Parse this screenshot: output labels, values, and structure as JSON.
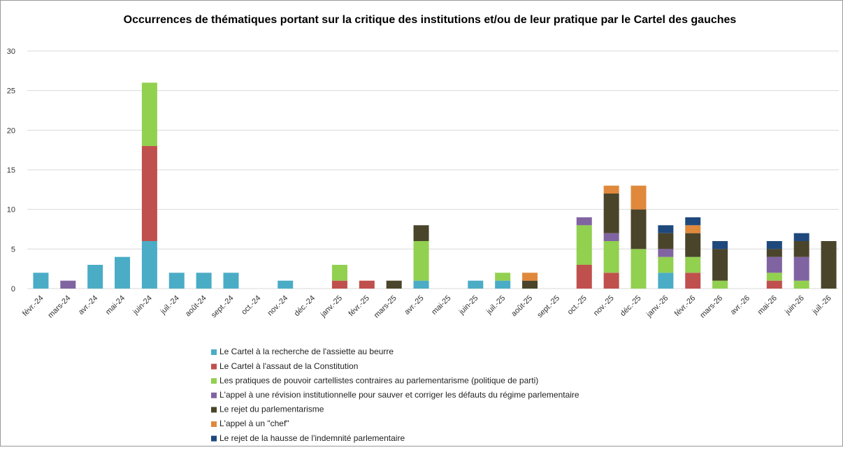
{
  "chart_data": {
    "type": "stacked_bar",
    "title": "Occurrences de thématiques portant sur la critique des institutions et/ou de leur pratique par le Cartel des gauches",
    "categories": [
      "févr.-24",
      "mars-24",
      "avr.-24",
      "mai-24",
      "juin-24",
      "juil.-24",
      "août-24",
      "sept.-24",
      "oct.-24",
      "nov.-24",
      "déc.-24",
      "janv.-25",
      "févr.-25",
      "mars-25",
      "avr.-25",
      "mai-25",
      "juin-25",
      "juil.-25",
      "août-25",
      "sept.-25",
      "oct.-25",
      "nov.-25",
      "déc.-25",
      "janv.-26",
      "févr.-26",
      "mars-26",
      "avr.-26",
      "mai-26",
      "juin-26",
      "juil.-26"
    ],
    "series": [
      {
        "name": "Le Cartel à la recherche de l'assiette au beurre",
        "color": "#4bacc6",
        "values": [
          2,
          0,
          3,
          4,
          6,
          2,
          2,
          2,
          0,
          1,
          0,
          0,
          0,
          0,
          1,
          0,
          1,
          1,
          0,
          0,
          0,
          0,
          0,
          2,
          0,
          0,
          0,
          0,
          0,
          0
        ]
      },
      {
        "name": "Le Cartel à l'assaut de la Constitution",
        "color": "#c0504d",
        "values": [
          0,
          0,
          0,
          0,
          12,
          0,
          0,
          0,
          0,
          0,
          0,
          1,
          1,
          0,
          0,
          0,
          0,
          0,
          0,
          0,
          3,
          2,
          0,
          0,
          2,
          0,
          0,
          1,
          0,
          0
        ]
      },
      {
        "name": "Les pratiques de pouvoir cartellistes contraires au parlementarisme (politique de parti)",
        "color": "#92d050",
        "values": [
          0,
          0,
          0,
          0,
          8,
          0,
          0,
          0,
          0,
          0,
          0,
          2,
          0,
          0,
          5,
          0,
          0,
          1,
          0,
          0,
          5,
          4,
          5,
          2,
          2,
          1,
          0,
          1,
          1,
          0
        ]
      },
      {
        "name": "L'appel à une révision institutionnelle pour sauver et corriger les défauts du régime parlementaire",
        "color": "#8064a2",
        "values": [
          0,
          1,
          0,
          0,
          0,
          0,
          0,
          0,
          0,
          0,
          0,
          0,
          0,
          0,
          0,
          0,
          0,
          0,
          0,
          0,
          1,
          1,
          0,
          1,
          0,
          0,
          0,
          2,
          3,
          0
        ]
      },
      {
        "name": "Le rejet du parlementarisme",
        "color": "#4a452a",
        "values": [
          0,
          0,
          0,
          0,
          0,
          0,
          0,
          0,
          0,
          0,
          0,
          0,
          0,
          1,
          2,
          0,
          0,
          0,
          1,
          0,
          0,
          5,
          5,
          2,
          3,
          4,
          0,
          1,
          2,
          6
        ]
      },
      {
        "name": "L'appel à un \"chef\"",
        "color": "#e0893c",
        "values": [
          0,
          0,
          0,
          0,
          0,
          0,
          0,
          0,
          0,
          0,
          0,
          0,
          0,
          0,
          0,
          0,
          0,
          0,
          1,
          0,
          0,
          1,
          3,
          0,
          1,
          0,
          0,
          0,
          0,
          0
        ]
      },
      {
        "name": "Le rejet de la hausse de l'indemnité parlementaire",
        "color": "#1f497d",
        "values": [
          0,
          0,
          0,
          0,
          0,
          0,
          0,
          0,
          0,
          0,
          0,
          0,
          0,
          0,
          0,
          0,
          0,
          0,
          0,
          0,
          0,
          0,
          0,
          1,
          1,
          1,
          0,
          1,
          1,
          0
        ]
      }
    ],
    "ylim": [
      0,
      30
    ],
    "yticks": [
      0,
      5,
      10,
      15,
      20,
      25,
      30
    ],
    "grid": true
  }
}
